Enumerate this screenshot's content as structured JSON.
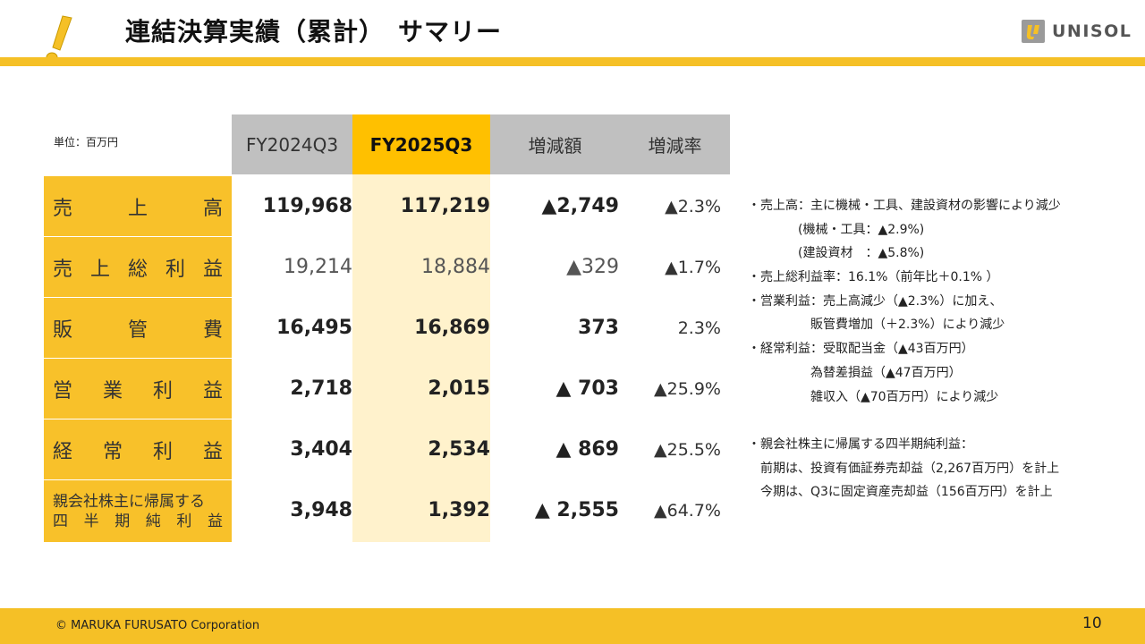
{
  "header": {
    "title": "連結決算実績（累計）　サマリー",
    "logo_text": "UNISOL"
  },
  "table": {
    "unit_label": "単位：百万円",
    "columns": [
      "FY2024Q3",
      "FY2025Q3",
      "増減額",
      "増減率"
    ],
    "rows": [
      {
        "label": "売上高",
        "prev": "119,968",
        "curr": "117,219",
        "diff": "▲2,749",
        "rate": "▲2.3%"
      },
      {
        "label": "売上総利益",
        "prev": "19,214",
        "curr": "18,884",
        "diff": "▲329",
        "rate": "▲1.7%"
      },
      {
        "label": "販管費",
        "prev": "16,495",
        "curr": "16,869",
        "diff": "373",
        "rate": "2.3%"
      },
      {
        "label": "営業利益",
        "prev": "2,718",
        "curr": "2,015",
        "diff": "▲ 703",
        "rate": "▲25.9%"
      },
      {
        "label": "経常利益",
        "prev": "3,404",
        "curr": "2,534",
        "diff": "▲ 869",
        "rate": "▲25.5%"
      },
      {
        "label_line1": "親会社株主に帰属する",
        "label_line2": "四半期純利益",
        "prev": "3,948",
        "curr": "1,392",
        "diff": "▲ 2,555",
        "rate": "▲64.7%"
      }
    ]
  },
  "notes": [
    "・売上高：主に機械・工具、建設資材の影響により減少",
    "　　　　(機械・工具：▲2.9%)",
    "　　　　(建設資材　：▲5.8%)",
    "・売上総利益率：16.1%（前年比＋0.1% ）",
    "・営業利益：売上高減少（▲2.3%）に加え、",
    "　　　　　販管費増加（＋2.3%）により減少",
    "・経常利益：受取配当金（▲43百万円）",
    "　　　　　為替差損益（▲47百万円）",
    "　　　　　雑収入（▲70百万円）により減少",
    "",
    "・親会社株主に帰属する四半期純利益：",
    "　前期は、投資有価証券売却益（2,267百万円）を計上",
    "　今期は、Q3に固定資産売却益（156百万円）を計上"
  ],
  "footer": {
    "copyright": "© MARUKA FURUSATO Corporation",
    "page": "10"
  },
  "colors": {
    "accent": "#f5c026",
    "label_bg": "#f8c12a",
    "highlight": "#fff2cc",
    "header_gray": "#c0c0c0",
    "current_head": "#ffc000"
  }
}
